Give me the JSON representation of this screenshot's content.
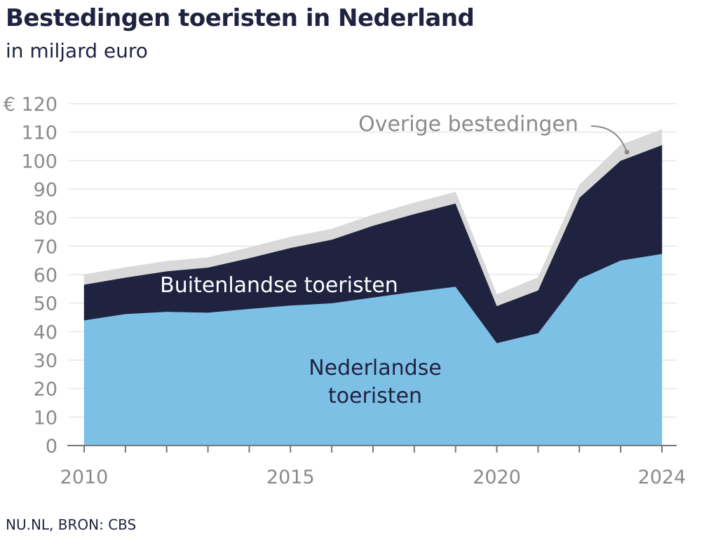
{
  "header": {
    "title": "Bestedingen toeristen in Nederland",
    "subtitle": "in miljard euro"
  },
  "footer": {
    "source": "NU.NL, BRON: CBS"
  },
  "chart_data": {
    "type": "area",
    "stacked": true,
    "title": "Bestedingen toeristen in Nederland",
    "subtitle": "in miljard euro",
    "x": [
      2010,
      2011,
      2012,
      2013,
      2014,
      2015,
      2016,
      2017,
      2018,
      2019,
      2020,
      2021,
      2022,
      2023,
      2024
    ],
    "x_tick_labels": [
      "2010",
      "2015",
      "2020",
      "2024"
    ],
    "y_tick_labels": [
      "0",
      "10",
      "20",
      "30",
      "40",
      "50",
      "60",
      "70",
      "80",
      "90",
      "100",
      "110",
      "€ 120"
    ],
    "ylim": [
      0,
      120
    ],
    "grid": true,
    "series": [
      {
        "name": "Nederlandse toeristen",
        "label_lines": [
          "Nederlandse",
          "toeristen"
        ],
        "color": "#7dc0e6",
        "text_color": "#1f2340",
        "values": [
          44,
          46.2,
          47,
          46.7,
          48,
          49.2,
          50,
          52,
          54,
          55.8,
          36,
          39.5,
          58.5,
          65,
          67.3
        ]
      },
      {
        "name": "Buitenlandse toeristen",
        "label_lines": [
          "Buitenlandse toeristen"
        ],
        "color": "#1f2340",
        "text_color": "#ffffff",
        "values": [
          12.5,
          12.8,
          14.2,
          15.8,
          17.8,
          20.2,
          22.3,
          25.2,
          27.3,
          29.2,
          13,
          15,
          28.5,
          35,
          38.2
        ]
      },
      {
        "name": "Overige bestedingen",
        "label_lines": [
          "Overige bestedingen"
        ],
        "color": "#d9d9d9",
        "text_color": "#8a8a8a",
        "values": [
          3.5,
          3.5,
          3.5,
          3.5,
          3.7,
          3.8,
          3.7,
          3.8,
          3.9,
          4,
          4,
          4.5,
          4.5,
          5.5,
          5.5
        ]
      }
    ],
    "colors": {
      "grid": "#e6e6e6",
      "axis": "#777777",
      "tick_text": "#8a8a8a"
    }
  }
}
